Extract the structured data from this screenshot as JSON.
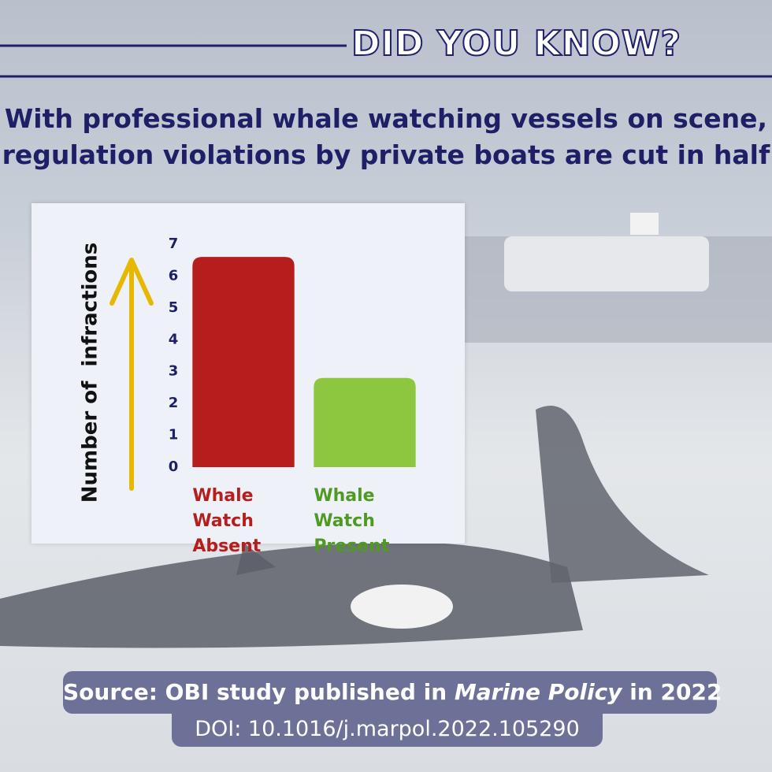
{
  "header": "DID YOU KNOW?",
  "headline": [
    "With professional whale watching vessels on scene,",
    "regulation violations by private boats are cut in half"
  ],
  "source": [
    "Source: OBI study published in ",
    "Marine Policy",
    " in 2022"
  ],
  "doi": "DOI: 10.1016/j.marpol.2022.105290",
  "chart_data": {
    "type": "bar",
    "y_label": "Number of  infractions",
    "categories": [
      "Whale Watch Absent",
      "Whale Watch Present"
    ],
    "values": [
      6.6,
      2.8
    ],
    "colors": [
      "#b61e1e",
      "#8dc63f"
    ],
    "ylim": [
      0,
      7
    ],
    "yticks": [
      0,
      1,
      2,
      3,
      4,
      5,
      6,
      7
    ],
    "grid": false
  }
}
